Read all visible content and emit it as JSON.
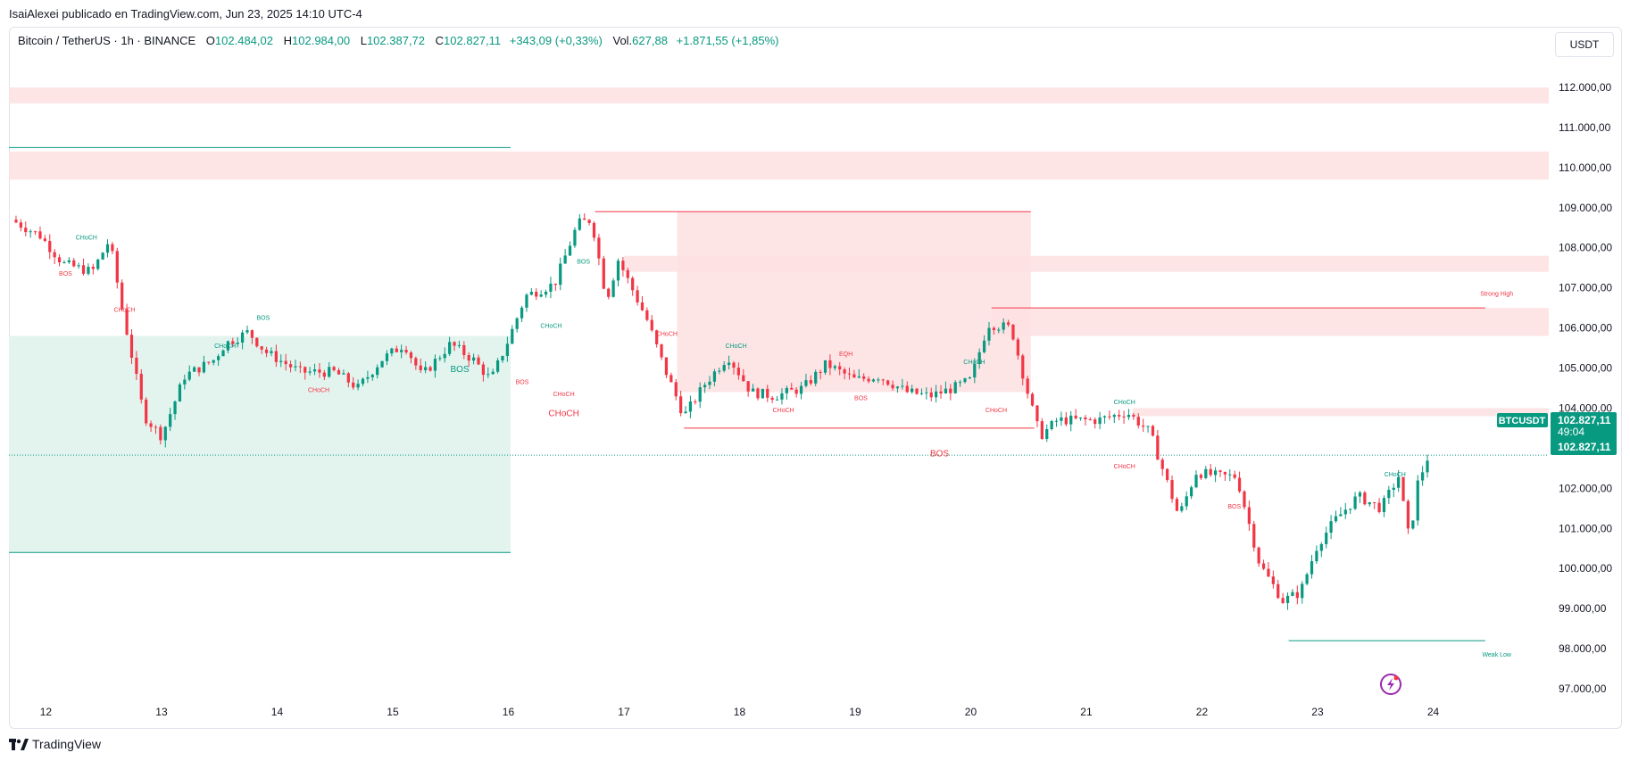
{
  "header": {
    "publisher_line": "IsaiAlexei publicado en TradingView.com, Jun 23, 2025 14:10 UTC-4"
  },
  "legend": {
    "symbol": "Bitcoin / TetherUS · 1h · BINANCE",
    "open_label": "O",
    "open": "102.484,02",
    "high_label": "H",
    "high": "102.984,00",
    "low_label": "L",
    "low": "102.387,72",
    "close_label": "C",
    "close": "102.827,11",
    "change": "+343,09 (+0,33%)",
    "vol_label": "Vol.",
    "vol": "627,88",
    "vol_change": "+1.871,55 (+1,85%)"
  },
  "currency": "USDT",
  "price_tag": {
    "symbol": "BTCUSDT",
    "price": "102.827,11",
    "countdown": "49:04",
    "price2": "102.827,11"
  },
  "brand": {
    "name": "TradingView"
  },
  "colors": {
    "up": "#089981",
    "down": "#f23645",
    "supply_zone": "#fde0e2",
    "demand_zone": "#e3f4ef"
  },
  "chart_data": {
    "type": "candlestick",
    "title": "",
    "ylim": [
      96600,
      112800
    ],
    "y_ticks": [
      97000,
      98000,
      99000,
      100000,
      101000,
      102000,
      103000,
      104000,
      105000,
      106000,
      107000,
      108000,
      109000,
      110000,
      111000,
      112000
    ],
    "y_tick_labels": [
      "97.000,00",
      "98.000,00",
      "99.000,00",
      "100.000,00",
      "101.000,00",
      "102.000,00",
      "103.000,00",
      "104.000,00",
      "105.000,00",
      "106.000,00",
      "107.000,00",
      "108.000,00",
      "109.000,00",
      "110.000,00",
      "111.000,00",
      "112.000,00"
    ],
    "x_ticks": [
      12,
      13,
      14,
      15,
      16,
      17,
      18,
      19,
      20,
      21,
      22,
      23,
      24
    ],
    "x_tick_labels": [
      "12",
      "13",
      "14",
      "15",
      "16",
      "17",
      "18",
      "19",
      "20",
      "21",
      "22",
      "23",
      "24"
    ],
    "xlim": [
      11.68,
      25.0
    ],
    "grid": false,
    "anchors": [
      [
        11.7,
        108700
      ],
      [
        11.95,
        108300
      ],
      [
        12.15,
        107600
      ],
      [
        12.4,
        107400
      ],
      [
        12.55,
        108200
      ],
      [
        12.65,
        106600
      ],
      [
        12.85,
        103800
      ],
      [
        13.0,
        103300
      ],
      [
        13.2,
        104800
      ],
      [
        13.45,
        105200
      ],
      [
        13.55,
        105600
      ],
      [
        13.75,
        105900
      ],
      [
        13.9,
        105400
      ],
      [
        14.2,
        104900
      ],
      [
        14.5,
        104900
      ],
      [
        14.7,
        104500
      ],
      [
        14.9,
        105200
      ],
      [
        15.1,
        105600
      ],
      [
        15.25,
        104800
      ],
      [
        15.5,
        105600
      ],
      [
        15.7,
        105200
      ],
      [
        15.85,
        104700
      ],
      [
        16.0,
        105700
      ],
      [
        16.15,
        106800
      ],
      [
        16.4,
        107100
      ],
      [
        16.6,
        108600
      ],
      [
        16.72,
        108700
      ],
      [
        16.85,
        106700
      ],
      [
        16.95,
        107700
      ],
      [
        17.2,
        106200
      ],
      [
        17.35,
        105000
      ],
      [
        17.52,
        103800
      ],
      [
        17.7,
        104600
      ],
      [
        17.9,
        105300
      ],
      [
        18.1,
        104400
      ],
      [
        18.3,
        104300
      ],
      [
        18.55,
        104500
      ],
      [
        18.75,
        105100
      ],
      [
        19.0,
        104700
      ],
      [
        19.2,
        104800
      ],
      [
        19.45,
        104400
      ],
      [
        19.65,
        104300
      ],
      [
        19.85,
        104500
      ],
      [
        20.0,
        104700
      ],
      [
        20.15,
        106100
      ],
      [
        20.35,
        106000
      ],
      [
        20.5,
        104300
      ],
      [
        20.6,
        103300
      ],
      [
        20.75,
        103700
      ],
      [
        21.1,
        103700
      ],
      [
        21.35,
        103900
      ],
      [
        21.55,
        103400
      ],
      [
        21.8,
        101300
      ],
      [
        21.95,
        102400
      ],
      [
        22.15,
        102300
      ],
      [
        22.3,
        102300
      ],
      [
        22.5,
        100100
      ],
      [
        22.7,
        99200
      ],
      [
        22.85,
        99400
      ],
      [
        23.0,
        100600
      ],
      [
        23.15,
        101200
      ],
      [
        23.35,
        101800
      ],
      [
        23.55,
        101500
      ],
      [
        23.7,
        102300
      ],
      [
        23.8,
        100600
      ],
      [
        23.85,
        102000
      ],
      [
        23.96,
        102827
      ]
    ],
    "zones": [
      {
        "type": "supply",
        "y": [
          111600,
          112000
        ],
        "x": [
          11.68,
          25.0
        ]
      },
      {
        "type": "supply",
        "y": [
          109700,
          110400
        ],
        "x": [
          11.68,
          25.0
        ]
      },
      {
        "type": "demand",
        "y": [
          100400,
          105800
        ],
        "x": [
          11.68,
          16.02
        ]
      },
      {
        "type": "supply",
        "y": [
          104400,
          108900
        ],
        "x": [
          17.46,
          20.52
        ]
      },
      {
        "type": "supply",
        "y": [
          107400,
          107800
        ],
        "x": [
          17.0,
          25.0
        ]
      },
      {
        "type": "supply",
        "y": [
          105800,
          106500
        ],
        "x": [
          20.18,
          25.0
        ]
      },
      {
        "type": "supply",
        "y": [
          103800,
          104000
        ],
        "x": [
          21.4,
          25.0
        ]
      }
    ],
    "levels": [
      {
        "y": 110500,
        "x": [
          11.68,
          16.02
        ],
        "color": "up"
      },
      {
        "y": 100400,
        "x": [
          11.68,
          16.02
        ],
        "color": "up"
      },
      {
        "y": 108900,
        "x": [
          16.75,
          20.52
        ],
        "color": "down"
      },
      {
        "y": 103500,
        "x": [
          17.52,
          20.55
        ],
        "color": "down"
      },
      {
        "y": 106500,
        "x": [
          20.18,
          24.45
        ],
        "color": "down"
      },
      {
        "y": 98200,
        "x": [
          22.75,
          24.45
        ],
        "color": "up"
      }
    ],
    "annotations": [
      {
        "text": "CHoCH",
        "x": 12.35,
        "y": 108200,
        "color": "up",
        "size": 7
      },
      {
        "text": "BOS",
        "x": 12.17,
        "y": 107300,
        "color": "down",
        "size": 7
      },
      {
        "text": "CHoCH",
        "x": 12.68,
        "y": 106400,
        "color": "down",
        "size": 7
      },
      {
        "text": "BOS",
        "x": 13.88,
        "y": 106200,
        "color": "up",
        "size": 7
      },
      {
        "text": "CHoCH",
        "x": 13.55,
        "y": 105500,
        "color": "up",
        "size": 7
      },
      {
        "text": "CHoCH",
        "x": 14.36,
        "y": 104400,
        "color": "down",
        "size": 7
      },
      {
        "text": "BOS",
        "x": 15.58,
        "y": 104900,
        "color": "up",
        "size": 10
      },
      {
        "text": "BOS",
        "x": 16.12,
        "y": 104600,
        "color": "down",
        "size": 7
      },
      {
        "text": "CHoCH",
        "x": 16.37,
        "y": 106000,
        "color": "up",
        "size": 7
      },
      {
        "text": "CHoCH",
        "x": 16.48,
        "y": 104300,
        "color": "down",
        "size": 7
      },
      {
        "text": "CHoCH",
        "x": 16.48,
        "y": 103800,
        "color": "down",
        "size": 10
      },
      {
        "text": "BOS",
        "x": 16.65,
        "y": 107600,
        "color": "up",
        "size": 7
      },
      {
        "text": "CHoCH",
        "x": 17.37,
        "y": 105800,
        "color": "down",
        "size": 7
      },
      {
        "text": "CHoCH",
        "x": 17.97,
        "y": 105500,
        "color": "up",
        "size": 7
      },
      {
        "text": "CHoCH",
        "x": 18.38,
        "y": 103900,
        "color": "down",
        "size": 7
      },
      {
        "text": "EQH",
        "x": 18.92,
        "y": 105300,
        "color": "down",
        "size": 7
      },
      {
        "text": "BOS",
        "x": 19.05,
        "y": 104200,
        "color": "down",
        "size": 7
      },
      {
        "text": "CHoCH",
        "x": 20.03,
        "y": 105100,
        "color": "up",
        "size": 7
      },
      {
        "text": "CHoCH",
        "x": 20.22,
        "y": 103900,
        "color": "down",
        "size": 7
      },
      {
        "text": "BOS",
        "x": 19.73,
        "y": 102800,
        "color": "down",
        "size": 10
      },
      {
        "text": "Strong High",
        "x": 24.55,
        "y": 106800,
        "color": "down",
        "size": 7
      },
      {
        "text": "CHoCH",
        "x": 21.33,
        "y": 104100,
        "color": "up",
        "size": 7
      },
      {
        "text": "CHoCH",
        "x": 21.33,
        "y": 102500,
        "color": "down",
        "size": 7
      },
      {
        "text": "BOS",
        "x": 22.28,
        "y": 101500,
        "color": "down",
        "size": 7
      },
      {
        "text": "CHoCH",
        "x": 23.67,
        "y": 102300,
        "color": "up",
        "size": 7
      },
      {
        "text": "Weak Low",
        "x": 24.55,
        "y": 97800,
        "color": "up",
        "size": 7
      }
    ],
    "last_price": 102827.11
  }
}
